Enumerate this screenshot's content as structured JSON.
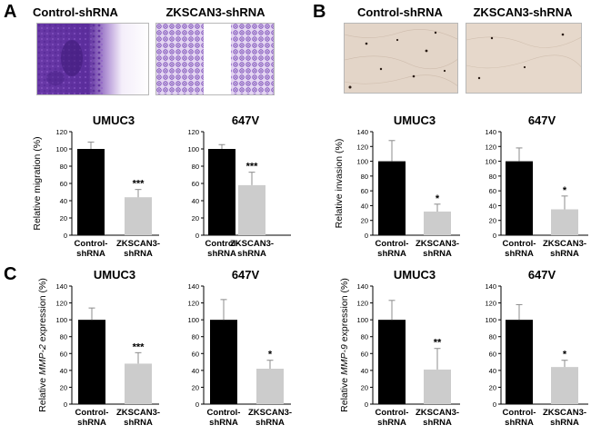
{
  "panels": {
    "A": {
      "letter": "A",
      "image_labels": [
        "Control-shRNA",
        "ZKSCAN3-shRNA"
      ],
      "stain": "crystal violet wound-healing"
    },
    "B": {
      "letter": "B",
      "image_labels": [
        "Control-shRNA",
        "ZKSCAN3-shRNA"
      ],
      "stain": "transwell invasion"
    },
    "C": {
      "letter": "C"
    }
  },
  "colors": {
    "control_bar": "#000000",
    "knockdown_bar": "#cccccc",
    "error_bar": "#8c8c8c",
    "violet_stain": "#7a4bb8",
    "invasion_bg": "#e2d3c6"
  },
  "chart_data": [
    {
      "id": "A-umuc3",
      "type": "bar",
      "title": "UMUC3",
      "ylabel": "Relative migration (%)",
      "ylabel_parts": [
        "Relative migration (%)"
      ],
      "ylim": [
        0,
        120
      ],
      "yticks": [
        0,
        20,
        40,
        60,
        80,
        100,
        120
      ],
      "categories": [
        [
          "Control-",
          "shRNA"
        ],
        [
          "ZKSCAN3-",
          "shRNA"
        ]
      ],
      "values": [
        100,
        44
      ],
      "errors": [
        8,
        9
      ],
      "significance": [
        "",
        "***"
      ]
    },
    {
      "id": "A-647v",
      "type": "bar",
      "title": "647V",
      "ylabel": "",
      "ylabel_parts": [],
      "ylim": [
        0,
        120
      ],
      "yticks": [
        0,
        20,
        40,
        60,
        80,
        100,
        120
      ],
      "categories": [
        [
          "Control-",
          "shRNA"
        ],
        [
          "ZKSCAN3-",
          "shRNA"
        ]
      ],
      "values": [
        100,
        58
      ],
      "errors": [
        5,
        15
      ],
      "significance": [
        "",
        "***"
      ]
    },
    {
      "id": "B-umuc3",
      "type": "bar",
      "title": "UMUC3",
      "ylabel": "Relative invasion (%)",
      "ylabel_parts": [
        "Relative invasion (%)"
      ],
      "ylim": [
        0,
        140
      ],
      "yticks": [
        0,
        20,
        40,
        60,
        80,
        100,
        120,
        140
      ],
      "categories": [
        [
          "Control-",
          "shRNA"
        ],
        [
          "ZKSCAN3-",
          "shRNA"
        ]
      ],
      "values": [
        100,
        32
      ],
      "errors": [
        28,
        10
      ],
      "significance": [
        "",
        "*"
      ]
    },
    {
      "id": "B-647v",
      "type": "bar",
      "title": "647V",
      "ylabel": "",
      "ylabel_parts": [],
      "ylim": [
        0,
        140
      ],
      "yticks": [
        0,
        20,
        40,
        60,
        80,
        100,
        120,
        140
      ],
      "categories": [
        [
          "Control-",
          "shRNA"
        ],
        [
          "ZKSCAN3-",
          "shRNA"
        ]
      ],
      "values": [
        100,
        35
      ],
      "errors": [
        18,
        18
      ],
      "significance": [
        "",
        "*"
      ]
    },
    {
      "id": "C-mmp2-umuc3",
      "type": "bar",
      "title": "UMUC3",
      "ylabel": "Relative MMP-2 expression (%)",
      "ylabel_parts": [
        "Relative ",
        "MMP-2",
        " expression (%)"
      ],
      "ylim": [
        0,
        140
      ],
      "yticks": [
        0,
        20,
        40,
        60,
        80,
        100,
        120,
        140
      ],
      "categories": [
        [
          "Control-",
          "shRNA"
        ],
        [
          "ZKSCAN3-",
          "shRNA"
        ]
      ],
      "values": [
        100,
        48
      ],
      "errors": [
        14,
        13
      ],
      "significance": [
        "",
        "***"
      ]
    },
    {
      "id": "C-mmp2-647v",
      "type": "bar",
      "title": "647V",
      "ylabel": "",
      "ylabel_parts": [],
      "ylim": [
        0,
        140
      ],
      "yticks": [
        0,
        20,
        40,
        60,
        80,
        100,
        120,
        140
      ],
      "categories": [
        [
          "Control-",
          "shRNA"
        ],
        [
          "ZKSCAN3-",
          "shRNA"
        ]
      ],
      "values": [
        100,
        42
      ],
      "errors": [
        24,
        10
      ],
      "significance": [
        "",
        "*"
      ]
    },
    {
      "id": "C-mmp9-umuc3",
      "type": "bar",
      "title": "UMUC3",
      "ylabel": "Relative MMP-9 expression (%)",
      "ylabel_parts": [
        "Relative ",
        "MMP-9",
        " expression (%)"
      ],
      "ylim": [
        0,
        140
      ],
      "yticks": [
        0,
        20,
        40,
        60,
        80,
        100,
        120,
        140
      ],
      "categories": [
        [
          "Control-",
          "shRNA"
        ],
        [
          "ZKSCAN3-",
          "shRNA"
        ]
      ],
      "values": [
        100,
        41
      ],
      "errors": [
        23,
        25
      ],
      "significance": [
        "",
        "**"
      ]
    },
    {
      "id": "C-mmp9-647v",
      "type": "bar",
      "title": "647V",
      "ylabel": "",
      "ylabel_parts": [],
      "ylim": [
        0,
        140
      ],
      "yticks": [
        0,
        20,
        40,
        60,
        80,
        100,
        120,
        140
      ],
      "categories": [
        [
          "Control-",
          "shRNA"
        ],
        [
          "ZKSCAN3-",
          "shRNA"
        ]
      ],
      "values": [
        100,
        44
      ],
      "errors": [
        18,
        8
      ],
      "significance": [
        "",
        "*"
      ]
    }
  ]
}
